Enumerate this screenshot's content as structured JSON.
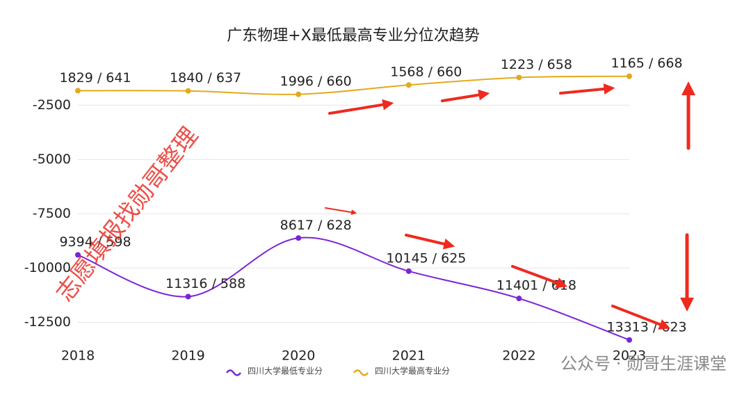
{
  "chart_data": {
    "type": "line",
    "title": "广东物理+X最低最高专业分位次趋势",
    "categories": [
      "2018",
      "2019",
      "2020",
      "2021",
      "2022",
      "2023"
    ],
    "series": [
      {
        "name": "四川大学最低专业分",
        "color": "#7b25d6",
        "values": [
          -9394,
          -11316,
          -8617,
          -10145,
          -11401,
          -13313
        ],
        "value_labels": [
          "9394 / 598",
          "11316 / 588",
          "8617 / 628",
          "10145 / 625",
          "11401 / 618",
          "13313 / 623"
        ]
      },
      {
        "name": "四川大学最高专业分",
        "color": "#e4a91c",
        "values": [
          -1829,
          -1840,
          -1996,
          -1568,
          -1223,
          -1165
        ],
        "value_labels": [
          "1829 / 641",
          "1840 / 637",
          "1996 / 660",
          "1568 / 660",
          "1223 / 658",
          "1165 / 668"
        ]
      }
    ],
    "ylim": [
      -13350,
      -600
    ],
    "yticks": [
      -2500,
      -5000,
      -7500,
      -10000,
      -12500
    ],
    "grid": true,
    "legend": "bottom",
    "annotations": [
      "志愿填报找勋哥整理",
      "公众号 · 勋哥生涯课堂"
    ]
  }
}
